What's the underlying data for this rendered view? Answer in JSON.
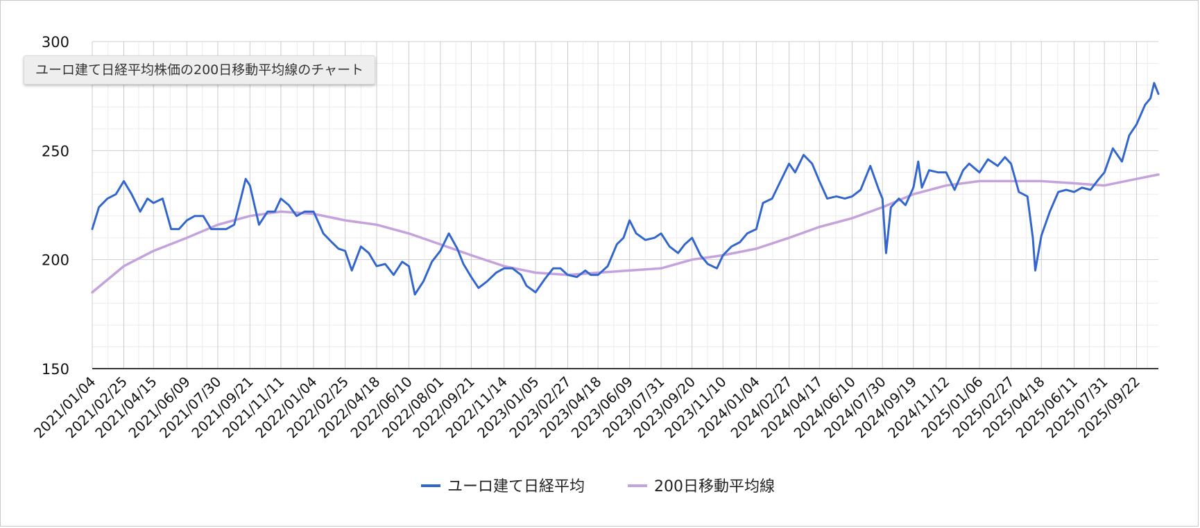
{
  "chart_data": {
    "type": "line",
    "title": "ユーロ建て日経平均株価の200日移動平均線のチャート",
    "ylim": [
      150,
      300
    ],
    "yticks": [
      150,
      200,
      250,
      300
    ],
    "x_ticks": [
      "2021/01/04",
      "2021/02/25",
      "2021/04/15",
      "2021/06/09",
      "2021/07/30",
      "2021/09/21",
      "2021/11/11",
      "2022/01/04",
      "2022/02/25",
      "2022/04/18",
      "2022/06/10",
      "2022/08/01",
      "2022/09/21",
      "2022/11/14",
      "2023/01/05",
      "2023/02/27",
      "2023/04/18",
      "2023/06/09",
      "2023/07/31",
      "2023/09/20",
      "2023/11/10",
      "2024/01/04",
      "2024/02/27",
      "2024/04/17",
      "2024/06/10",
      "2024/07/30",
      "2024/09/19",
      "2024/11/12",
      "2025/01/06",
      "2025/02/27",
      "2025/04/18",
      "2025/06/11",
      "2025/07/31",
      "2025/09/22"
    ],
    "grid": true,
    "legend_position": "bottom",
    "series": [
      {
        "name": "ユーロ建て日経平均",
        "color": "#3366cc",
        "points": [
          [
            "2021/01/04",
            214
          ],
          [
            "2021/01/15",
            224
          ],
          [
            "2021/01/29",
            228
          ],
          [
            "2021/02/12",
            230
          ],
          [
            "2021/02/25",
            236
          ],
          [
            "2021/03/10",
            230
          ],
          [
            "2021/03/24",
            222
          ],
          [
            "2021/04/05",
            228
          ],
          [
            "2021/04/15",
            226
          ],
          [
            "2021/04/30",
            228
          ],
          [
            "2021/05/14",
            214
          ],
          [
            "2021/05/27",
            214
          ],
          [
            "2021/06/09",
            218
          ],
          [
            "2021/06/22",
            220
          ],
          [
            "2021/07/06",
            220
          ],
          [
            "2021/07/19",
            214
          ],
          [
            "2021/07/30",
            214
          ],
          [
            "2021/08/13",
            214
          ],
          [
            "2021/08/26",
            216
          ],
          [
            "2021/09/06",
            228
          ],
          [
            "2021/09/14",
            237
          ],
          [
            "2021/09/21",
            234
          ],
          [
            "2021/10/06",
            216
          ],
          [
            "2021/10/20",
            222
          ],
          [
            "2021/11/01",
            222
          ],
          [
            "2021/11/11",
            228
          ],
          [
            "2021/11/24",
            225
          ],
          [
            "2021/12/07",
            220
          ],
          [
            "2021/12/20",
            222
          ],
          [
            "2022/01/04",
            222
          ],
          [
            "2022/01/20",
            212
          ],
          [
            "2022/02/03",
            208
          ],
          [
            "2022/02/14",
            205
          ],
          [
            "2022/02/25",
            204
          ],
          [
            "2022/03/08",
            195
          ],
          [
            "2022/03/23",
            206
          ],
          [
            "2022/04/05",
            203
          ],
          [
            "2022/04/18",
            197
          ],
          [
            "2022/05/02",
            198
          ],
          [
            "2022/05/16",
            193
          ],
          [
            "2022/05/30",
            199
          ],
          [
            "2022/06/10",
            197
          ],
          [
            "2022/06/20",
            184
          ],
          [
            "2022/07/04",
            190
          ],
          [
            "2022/07/18",
            199
          ],
          [
            "2022/08/01",
            204
          ],
          [
            "2022/08/15",
            212
          ],
          [
            "2022/08/29",
            205
          ],
          [
            "2022/09/08",
            198
          ],
          [
            "2022/09/21",
            192
          ],
          [
            "2022/10/03",
            187
          ],
          [
            "2022/10/17",
            190
          ],
          [
            "2022/11/01",
            194
          ],
          [
            "2022/11/14",
            196
          ],
          [
            "2022/11/28",
            196
          ],
          [
            "2022/12/12",
            193
          ],
          [
            "2022/12/21",
            188
          ],
          [
            "2023/01/05",
            185
          ],
          [
            "2023/01/20",
            191
          ],
          [
            "2023/02/03",
            196
          ],
          [
            "2023/02/15",
            196
          ],
          [
            "2023/02/27",
            193
          ],
          [
            "2023/03/14",
            192
          ],
          [
            "2023/03/28",
            195
          ],
          [
            "2023/04/06",
            193
          ],
          [
            "2023/04/18",
            193
          ],
          [
            "2023/05/04",
            197
          ],
          [
            "2023/05/19",
            207
          ],
          [
            "2023/05/30",
            210
          ],
          [
            "2023/06/09",
            218
          ],
          [
            "2023/06/20",
            212
          ],
          [
            "2023/07/05",
            209
          ],
          [
            "2023/07/20",
            210
          ],
          [
            "2023/07/31",
            212
          ],
          [
            "2023/08/14",
            206
          ],
          [
            "2023/08/28",
            203
          ],
          [
            "2023/09/08",
            207
          ],
          [
            "2023/09/20",
            210
          ],
          [
            "2023/10/04",
            202
          ],
          [
            "2023/10/16",
            198
          ],
          [
            "2023/10/31",
            196
          ],
          [
            "2023/11/10",
            202
          ],
          [
            "2023/11/24",
            206
          ],
          [
            "2023/12/08",
            208
          ],
          [
            "2023/12/20",
            212
          ],
          [
            "2024/01/04",
            214
          ],
          [
            "2024/01/15",
            226
          ],
          [
            "2024/01/30",
            228
          ],
          [
            "2024/02/13",
            236
          ],
          [
            "2024/02/27",
            244
          ],
          [
            "2024/03/08",
            240
          ],
          [
            "2024/03/22",
            248
          ],
          [
            "2024/04/05",
            244
          ],
          [
            "2024/04/17",
            236
          ],
          [
            "2024/04/30",
            228
          ],
          [
            "2024/05/15",
            229
          ],
          [
            "2024/05/29",
            228
          ],
          [
            "2024/06/10",
            229
          ],
          [
            "2024/06/24",
            232
          ],
          [
            "2024/07/10",
            243
          ],
          [
            "2024/07/24",
            232
          ],
          [
            "2024/07/30",
            228
          ],
          [
            "2024/08/05",
            203
          ],
          [
            "2024/08/13",
            224
          ],
          [
            "2024/08/26",
            228
          ],
          [
            "2024/09/06",
            225
          ],
          [
            "2024/09/19",
            233
          ],
          [
            "2024/09/27",
            245
          ],
          [
            "2024/10/03",
            233
          ],
          [
            "2024/10/15",
            241
          ],
          [
            "2024/10/30",
            240
          ],
          [
            "2024/11/12",
            240
          ],
          [
            "2024/11/26",
            232
          ],
          [
            "2024/12/10",
            241
          ],
          [
            "2024/12/20",
            244
          ],
          [
            "2025/01/06",
            240
          ],
          [
            "2025/01/20",
            246
          ],
          [
            "2025/02/05",
            243
          ],
          [
            "2025/02/17",
            247
          ],
          [
            "2025/02/27",
            244
          ],
          [
            "2025/03/12",
            231
          ],
          [
            "2025/03/26",
            229
          ],
          [
            "2025/04/04",
            210
          ],
          [
            "2025/04/08",
            195
          ],
          [
            "2025/04/18",
            211
          ],
          [
            "2025/05/02",
            222
          ],
          [
            "2025/05/16",
            231
          ],
          [
            "2025/05/29",
            232
          ],
          [
            "2025/06/11",
            231
          ],
          [
            "2025/06/24",
            233
          ],
          [
            "2025/07/08",
            232
          ],
          [
            "2025/07/22",
            237
          ],
          [
            "2025/07/31",
            240
          ],
          [
            "2025/08/14",
            251
          ],
          [
            "2025/08/29",
            245
          ],
          [
            "2025/09/10",
            257
          ],
          [
            "2025/09/22",
            262
          ],
          [
            "2025/10/06",
            271
          ],
          [
            "2025/10/15",
            274
          ],
          [
            "2025/10/21",
            281
          ],
          [
            "2025/10/28",
            276
          ]
        ]
      },
      {
        "name": "200日移動平均線",
        "color": "#c4a2dc",
        "points": [
          [
            "2021/01/04",
            185
          ],
          [
            "2021/02/25",
            197
          ],
          [
            "2021/04/15",
            204
          ],
          [
            "2021/06/09",
            210
          ],
          [
            "2021/07/30",
            216
          ],
          [
            "2021/09/21",
            220
          ],
          [
            "2021/11/11",
            222
          ],
          [
            "2022/01/04",
            221
          ],
          [
            "2022/02/25",
            218
          ],
          [
            "2022/04/18",
            216
          ],
          [
            "2022/06/10",
            212
          ],
          [
            "2022/08/01",
            207
          ],
          [
            "2022/09/21",
            202
          ],
          [
            "2022/11/14",
            197
          ],
          [
            "2023/01/05",
            194
          ],
          [
            "2023/02/27",
            193
          ],
          [
            "2023/04/18",
            194
          ],
          [
            "2023/06/09",
            195
          ],
          [
            "2023/07/31",
            196
          ],
          [
            "2023/09/20",
            200
          ],
          [
            "2023/11/10",
            202
          ],
          [
            "2024/01/04",
            205
          ],
          [
            "2024/02/27",
            210
          ],
          [
            "2024/04/17",
            215
          ],
          [
            "2024/06/10",
            219
          ],
          [
            "2024/07/30",
            224
          ],
          [
            "2024/09/19",
            230
          ],
          [
            "2024/11/12",
            234
          ],
          [
            "2025/01/06",
            236
          ],
          [
            "2025/02/27",
            236
          ],
          [
            "2025/04/18",
            236
          ],
          [
            "2025/06/11",
            235
          ],
          [
            "2025/07/31",
            234
          ],
          [
            "2025/09/22",
            237
          ],
          [
            "2025/10/28",
            239
          ]
        ]
      }
    ]
  }
}
